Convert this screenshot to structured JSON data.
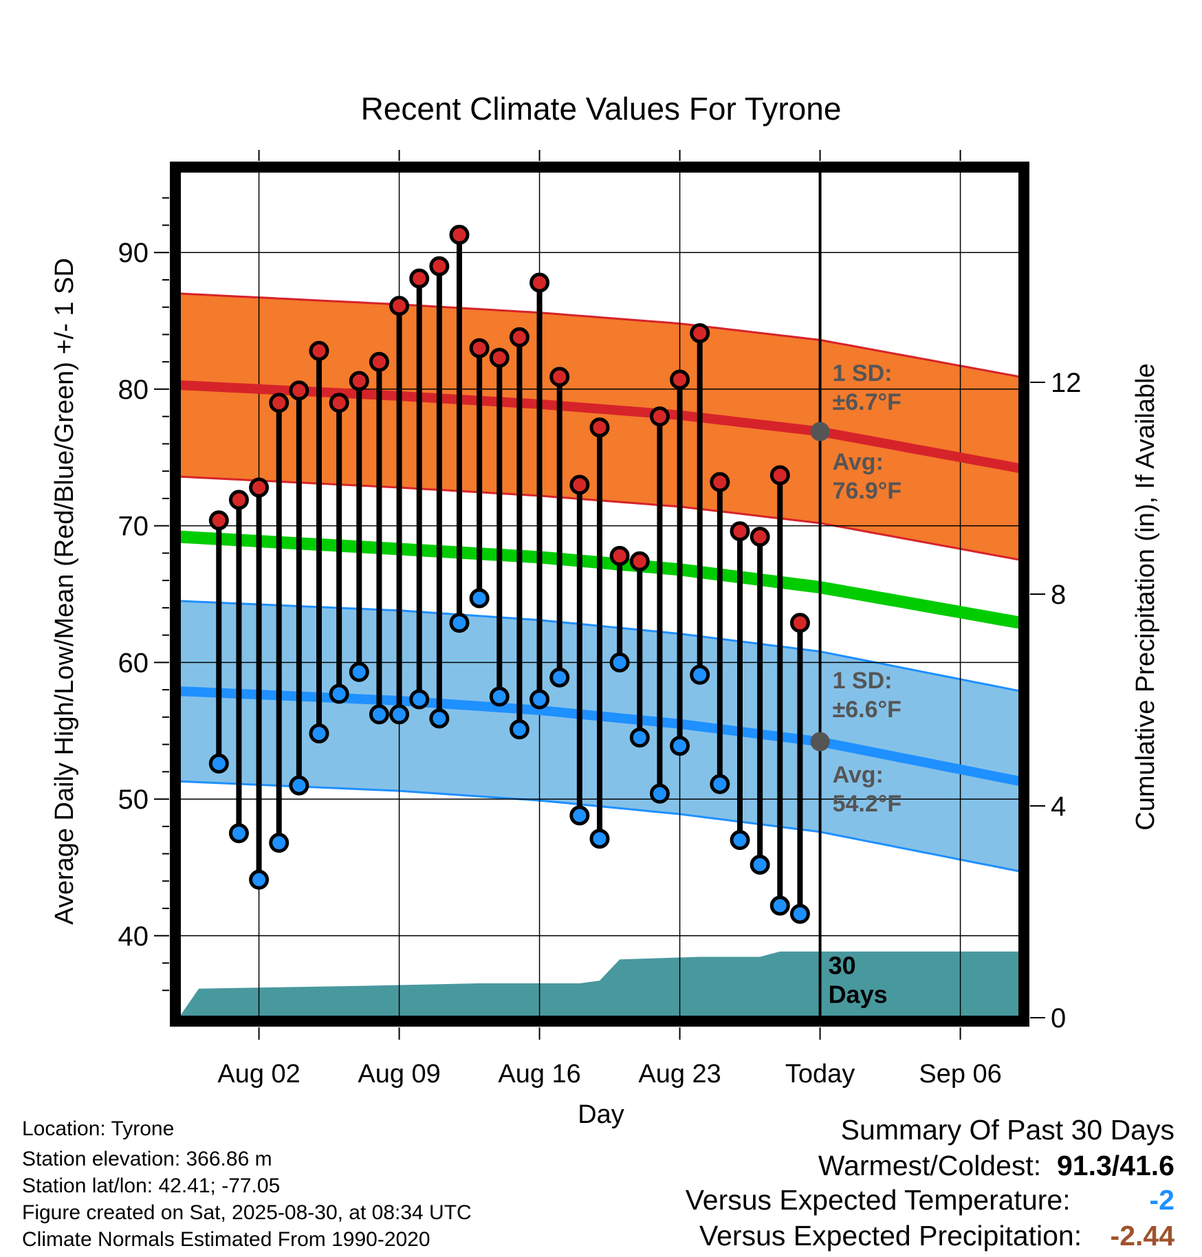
{
  "chart_data": {
    "type": "line",
    "title": "Recent Climate Values For Tyrone",
    "xlabel": "Day",
    "ylabel": "Average Daily High/Low/Mean (Red/Blue/Green) +/- 1 SD",
    "ylabel_right": "Cumulative Precipitation (in), If Available",
    "ylim": [
      34,
      96
    ],
    "ylim_right": [
      0,
      16
    ],
    "x_range": [
      "2025-07-29",
      "2025-09-09"
    ],
    "x_ticks": [
      {
        "date": "2025-08-02",
        "label": "Aug 02"
      },
      {
        "date": "2025-08-09",
        "label": "Aug 09"
      },
      {
        "date": "2025-08-16",
        "label": "Aug 16"
      },
      {
        "date": "2025-08-23",
        "label": "Aug 23"
      },
      {
        "date": "2025-08-30",
        "label": "Today"
      },
      {
        "date": "2025-09-06",
        "label": "Sep 06"
      }
    ],
    "y_ticks": [
      40,
      50,
      60,
      70,
      80,
      90
    ],
    "y_ticks_right": [
      0,
      4,
      8,
      12
    ],
    "grid": true,
    "today": "2025-08-30",
    "normals": {
      "dates": [
        "2025-07-29",
        "2025-08-09",
        "2025-08-16",
        "2025-08-23",
        "2025-08-30",
        "2025-09-09"
      ],
      "high_mean": [
        80.3,
        79.5,
        78.9,
        78.1,
        76.9,
        74.2
      ],
      "high_sd": 6.7,
      "low_mean": [
        57.9,
        57.2,
        56.5,
        55.5,
        54.2,
        51.3
      ],
      "low_sd": 6.6,
      "mean": [
        69.2,
        68.3,
        67.7,
        66.8,
        65.5,
        62.9
      ]
    },
    "daily": [
      {
        "date": "2025-07-31",
        "high": 70.4,
        "low": 52.6
      },
      {
        "date": "2025-08-01",
        "high": 71.9,
        "low": 47.5
      },
      {
        "date": "2025-08-02",
        "high": 72.8,
        "low": 44.1
      },
      {
        "date": "2025-08-03",
        "high": 79.0,
        "low": 46.8
      },
      {
        "date": "2025-08-04",
        "high": 79.9,
        "low": 51.0
      },
      {
        "date": "2025-08-05",
        "high": 82.8,
        "low": 54.8
      },
      {
        "date": "2025-08-06",
        "high": 79.0,
        "low": 57.7
      },
      {
        "date": "2025-08-07",
        "high": 80.6,
        "low": 59.3
      },
      {
        "date": "2025-08-08",
        "high": 82.0,
        "low": 56.2
      },
      {
        "date": "2025-08-09",
        "high": 86.1,
        "low": 56.2
      },
      {
        "date": "2025-08-10",
        "high": 88.1,
        "low": 57.3
      },
      {
        "date": "2025-08-11",
        "high": 89.0,
        "low": 55.9
      },
      {
        "date": "2025-08-12",
        "high": 91.3,
        "low": 62.9
      },
      {
        "date": "2025-08-13",
        "high": 83.0,
        "low": 64.7
      },
      {
        "date": "2025-08-14",
        "high": 82.3,
        "low": 57.5
      },
      {
        "date": "2025-08-15",
        "high": 83.8,
        "low": 55.1
      },
      {
        "date": "2025-08-16",
        "high": 87.8,
        "low": 57.3
      },
      {
        "date": "2025-08-17",
        "high": 80.9,
        "low": 58.9
      },
      {
        "date": "2025-08-18",
        "high": 73.0,
        "low": 48.8
      },
      {
        "date": "2025-08-19",
        "high": 77.2,
        "low": 47.1
      },
      {
        "date": "2025-08-20",
        "high": 67.8,
        "low": 60.0
      },
      {
        "date": "2025-08-21",
        "high": 67.4,
        "low": 54.5
      },
      {
        "date": "2025-08-22",
        "high": 78.0,
        "low": 50.4
      },
      {
        "date": "2025-08-23",
        "high": 80.7,
        "low": 53.9
      },
      {
        "date": "2025-08-24",
        "high": 84.1,
        "low": 59.1
      },
      {
        "date": "2025-08-25",
        "high": 73.2,
        "low": 51.1
      },
      {
        "date": "2025-08-26",
        "high": 69.6,
        "low": 47.0
      },
      {
        "date": "2025-08-27",
        "high": 69.2,
        "low": 45.2
      },
      {
        "date": "2025-08-28",
        "high": 73.7,
        "low": 42.2
      },
      {
        "date": "2025-08-29",
        "high": 62.9,
        "low": 41.6
      }
    ],
    "precipitation": {
      "dates": [
        "2025-07-29",
        "2025-07-30",
        "2025-08-07",
        "2025-08-13",
        "2025-08-18",
        "2025-08-19",
        "2025-08-20",
        "2025-08-24",
        "2025-08-27",
        "2025-08-28",
        "2025-09-09"
      ],
      "cumulative": [
        0.0,
        0.55,
        0.6,
        0.65,
        0.65,
        0.7,
        1.1,
        1.15,
        1.15,
        1.25,
        1.25
      ]
    },
    "annotations": {
      "high_sd": [
        "1 SD:",
        "±6.7°F"
      ],
      "high_avg": [
        "Avg:",
        "76.9°F"
      ],
      "low_sd": [
        "1 SD:",
        "±6.6°F"
      ],
      "low_avg": [
        "Avg:",
        "54.2°F"
      ],
      "days": [
        "30",
        "Days"
      ]
    },
    "colors": {
      "high_band": "#f47a2c",
      "high_line": "#d6232a",
      "low_band": "#84c1e8",
      "low_line": "#1e90ff",
      "mean_line": "#00cc00",
      "precip": "#48999e",
      "high_marker": "#d62728",
      "low_marker": "#1e90ff",
      "annotation": "#555555"
    }
  },
  "info": {
    "location": "Location: Tyrone",
    "elevation": "Station elevation: 366.86 m",
    "latlon": "Station lat/lon: 42.41; -77.05",
    "created": "Figure created on Sat, 2025-08-30, at 08:34 UTC",
    "normals": "Climate Normals Estimated From 1990-2020"
  },
  "summary": {
    "heading": "Summary Of Past 30 Days",
    "warmest_label": "Warmest/Coldest:",
    "warmest_value": "91.3/41.6",
    "temp_label": "Versus Expected Temperature:",
    "temp_value": "-2",
    "temp_color": "#1e90ff",
    "precip_label": "Versus Expected Precipitation:",
    "precip_value": "-2.44",
    "precip_color": "#a0522d"
  }
}
